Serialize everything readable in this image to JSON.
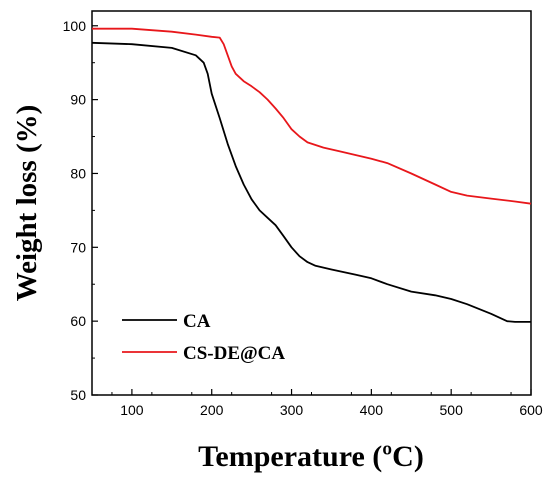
{
  "chart_data": {
    "type": "line",
    "xlabel": "Temperature (ºC)",
    "ylabel": "Weight loss (%)",
    "xlim": [
      50,
      600
    ],
    "ylim": [
      50,
      102
    ],
    "xticks": [
      100,
      200,
      300,
      400,
      500,
      600
    ],
    "yticks": [
      50,
      60,
      70,
      80,
      90,
      100
    ],
    "grid": false,
    "legend_position": "bottom-left",
    "series": [
      {
        "name": "CA",
        "color": "#000000",
        "x": [
          50,
          100,
          150,
          180,
          190,
          195,
          200,
          210,
          220,
          230,
          240,
          250,
          260,
          270,
          280,
          290,
          300,
          310,
          320,
          330,
          350,
          380,
          400,
          420,
          450,
          480,
          500,
          520,
          550,
          570,
          580,
          600
        ],
        "y": [
          97.7,
          97.5,
          97.0,
          96.0,
          95.0,
          93.5,
          90.8,
          87.5,
          84.0,
          81.0,
          78.5,
          76.5,
          75.0,
          74.0,
          73.0,
          71.5,
          70.0,
          68.8,
          68.0,
          67.5,
          67.0,
          66.3,
          65.8,
          65.0,
          64.0,
          63.5,
          63.0,
          62.3,
          61.0,
          60.0,
          59.9,
          59.9
        ]
      },
      {
        "name": "CS-DE@CA",
        "color": "#e8171b",
        "x": [
          50,
          100,
          150,
          180,
          200,
          210,
          215,
          220,
          225,
          230,
          240,
          250,
          260,
          270,
          280,
          290,
          300,
          310,
          320,
          340,
          360,
          380,
          400,
          420,
          450,
          480,
          500,
          520,
          550,
          580,
          600
        ],
        "y": [
          99.6,
          99.6,
          99.2,
          98.8,
          98.5,
          98.4,
          97.5,
          96.0,
          94.5,
          93.5,
          92.5,
          91.8,
          91.0,
          90.0,
          88.8,
          87.5,
          86.0,
          85.0,
          84.2,
          83.5,
          83.0,
          82.5,
          82.0,
          81.4,
          80.0,
          78.5,
          77.5,
          77.0,
          76.6,
          76.2,
          75.9
        ]
      }
    ]
  }
}
